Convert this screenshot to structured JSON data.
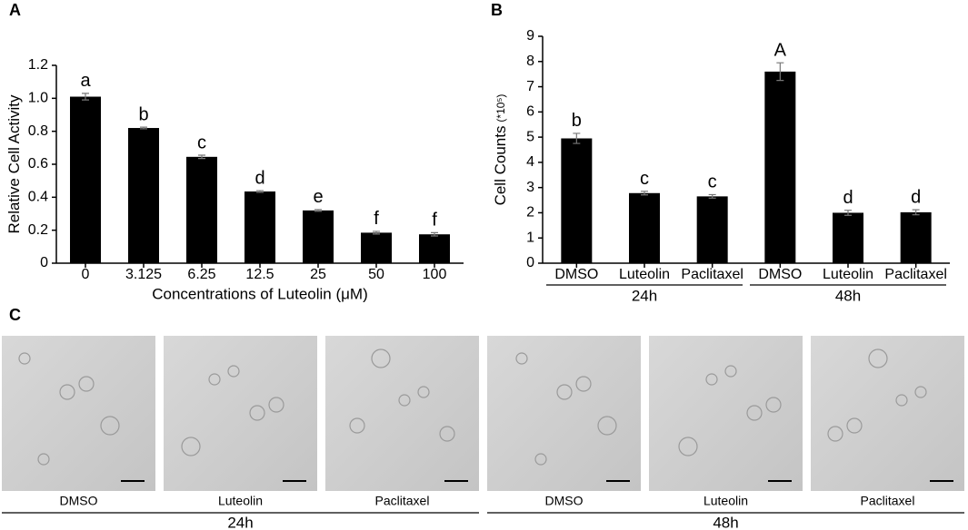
{
  "chart_data": [
    {
      "type": "bar",
      "panel": "A",
      "ylabel": "Relative Cell Activity",
      "xlabel": "Concentrations of Luteolin (μM)",
      "categories": [
        "0",
        "3.125",
        "6.25",
        "12.5",
        "25",
        "50",
        "100"
      ],
      "values": [
        1.01,
        0.82,
        0.645,
        0.435,
        0.32,
        0.185,
        0.175
      ],
      "errors": [
        0.02,
        0.005,
        0.01,
        0.005,
        0.005,
        0.008,
        0.01
      ],
      "annotations": [
        "a",
        "b",
        "c",
        "d",
        "e",
        "f",
        "f"
      ],
      "color": "#000000",
      "ylim": [
        0,
        1.2
      ],
      "yticks": [
        0,
        0.2,
        0.4,
        0.6,
        0.8,
        {
          "value": 1,
          "label": "1.0"
        },
        1.2
      ]
    },
    {
      "type": "bar",
      "panel": "B",
      "ylabel": "Cell Counts",
      "ylabel_unit": "(*10⁵)",
      "categories": [
        "DMSO",
        "Luteolin",
        "Paclitaxel",
        "DMSO",
        "Luteolin",
        "Paclitaxel"
      ],
      "groups": [
        "24h",
        "48h"
      ],
      "values": [
        4.95,
        2.78,
        2.65,
        7.6,
        2.0,
        2.02
      ],
      "errors": [
        0.2,
        0.07,
        0.07,
        0.35,
        0.1,
        0.1
      ],
      "annotations": [
        "b",
        "c",
        "c",
        "A",
        "d",
        "d"
      ],
      "color": "#000000",
      "ylim": [
        0,
        9
      ],
      "yticks": [
        0,
        1,
        2,
        3,
        4,
        5,
        6,
        7,
        8,
        9
      ]
    }
  ],
  "panel_c": {
    "panel": "C",
    "groups": [
      {
        "name": "24h",
        "labels": [
          "DMSO",
          "Luteolin",
          "Paclitaxel"
        ]
      },
      {
        "name": "48h",
        "labels": [
          "DMSO",
          "Luteolin",
          "Paclitaxel"
        ]
      }
    ]
  }
}
